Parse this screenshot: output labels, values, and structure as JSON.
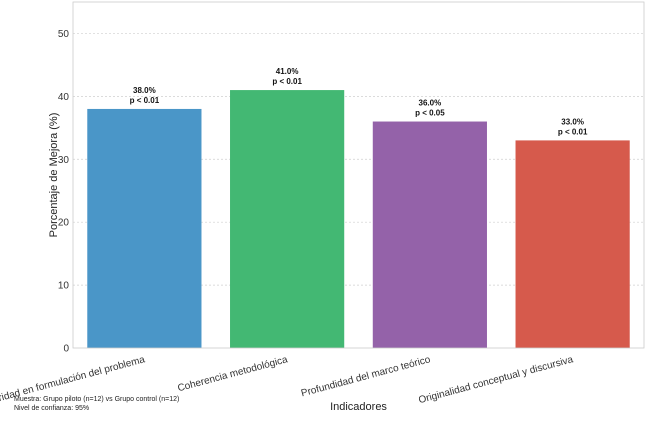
{
  "chart_data": {
    "type": "bar",
    "categories": [
      "Claridad en formulación del problema",
      "Coherencia metodológica",
      "Profundidad del marco teórico",
      "Originalidad conceptual y discursiva"
    ],
    "values": [
      38.0,
      41.0,
      36.0,
      33.0
    ],
    "value_labels": [
      "38.0%",
      "41.0%",
      "36.0%",
      "33.0%"
    ],
    "significance_labels": [
      "p < 0.01",
      "p < 0.01",
      "p < 0.05",
      "p < 0.01"
    ],
    "colors": [
      "#4a96c8",
      "#43b873",
      "#9462a9",
      "#d65a4c"
    ],
    "xlabel": "Indicadores",
    "ylabel": "Porcentaje de Mejora (%)",
    "ylim": [
      0,
      55
    ],
    "yticks": [
      0,
      10,
      20,
      30,
      40,
      50
    ],
    "grid": "horizontal dashed",
    "legend": "none"
  },
  "notes": {
    "sample": "Muestra: Grupo piloto (n=12) vs Grupo control (n=12)",
    "confidence": "Nivel de confianza: 95%"
  }
}
